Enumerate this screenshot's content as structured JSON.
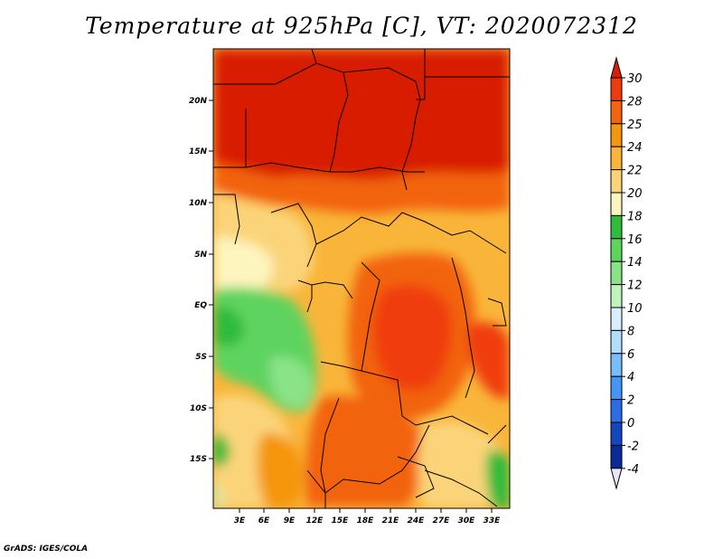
{
  "title": "Temperature at 925hPa [C], VT: 2020072312",
  "credit": "GrADS: IGES/COLA",
  "map": {
    "lat_labels": [
      "20N",
      "15N",
      "10N",
      "5N",
      "EQ",
      "5S",
      "10S",
      "15S"
    ],
    "lon_labels": [
      "3E",
      "6E",
      "9E",
      "12E",
      "15E",
      "18E",
      "21E",
      "24E",
      "27E",
      "30E",
      "33E"
    ]
  },
  "colorbar": {
    "labels": [
      "30",
      "28",
      "25",
      "24",
      "22",
      "20",
      "18",
      "16",
      "14",
      "12",
      "10",
      "8",
      "6",
      "4",
      "2",
      "0",
      "-2",
      "-4"
    ],
    "colors": [
      "#d81e06",
      "#f03c0c",
      "#f2640f",
      "#f5960f",
      "#f9b53a",
      "#fbd47a",
      "#fdf5be",
      "#2fbb3c",
      "#5ed35e",
      "#8be388",
      "#bff3bc",
      "#d9effe",
      "#b4dcfd",
      "#78befb",
      "#4596f4",
      "#2c6ce6",
      "#1546bd",
      "#0a2a96",
      "#061564"
    ]
  },
  "colors": {
    "hot": "#d81e06",
    "land_border": "#000000"
  }
}
